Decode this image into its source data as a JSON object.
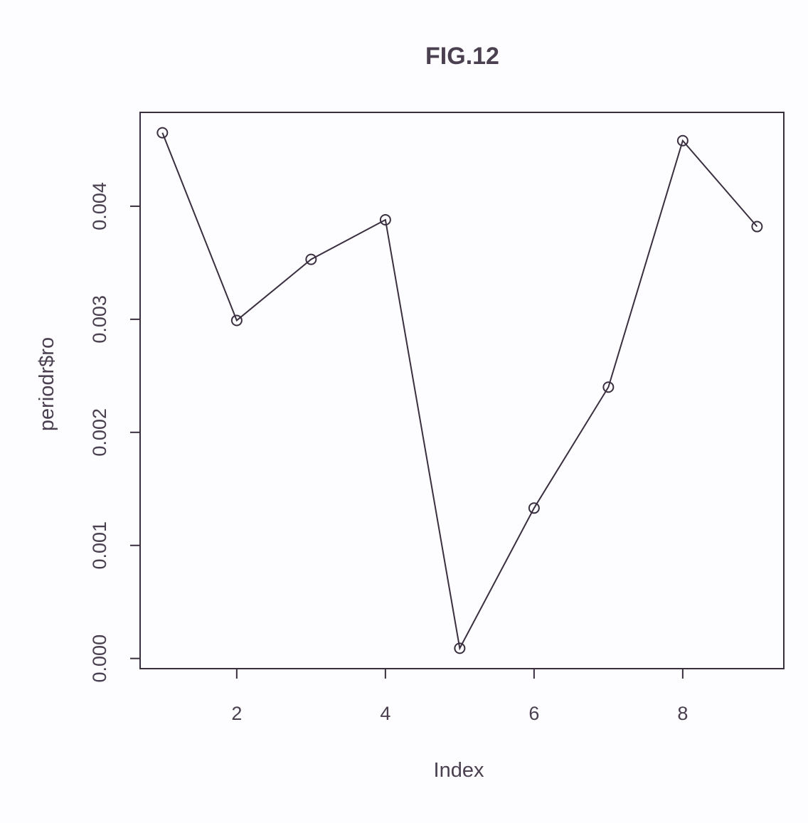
{
  "chart_data": {
    "type": "line",
    "title": "FIG.12",
    "xlabel": "Index",
    "ylabel": "periodr$ro",
    "x": [
      1,
      2,
      3,
      4,
      5,
      6,
      7,
      8,
      9
    ],
    "values": [
      0.00465,
      0.00299,
      0.00353,
      0.00388,
      9e-05,
      0.00133,
      0.0024,
      0.00458,
      0.00382
    ],
    "markers": "open-circle",
    "line_color": "#3a2f3f",
    "xlim": [
      0.7,
      9.36
    ],
    "ylim": [
      -9e-05,
      0.00483
    ],
    "xticks": [
      2,
      4,
      6,
      8
    ],
    "xtick_labels": [
      "2",
      "4",
      "6",
      "8"
    ],
    "yticks": [
      0,
      0.001,
      0.002,
      0.003,
      0.004
    ],
    "ytick_labels": [
      "0.000",
      "0.001",
      "0.002",
      "0.003",
      "0.004"
    ],
    "grid": false,
    "legend": "none"
  }
}
